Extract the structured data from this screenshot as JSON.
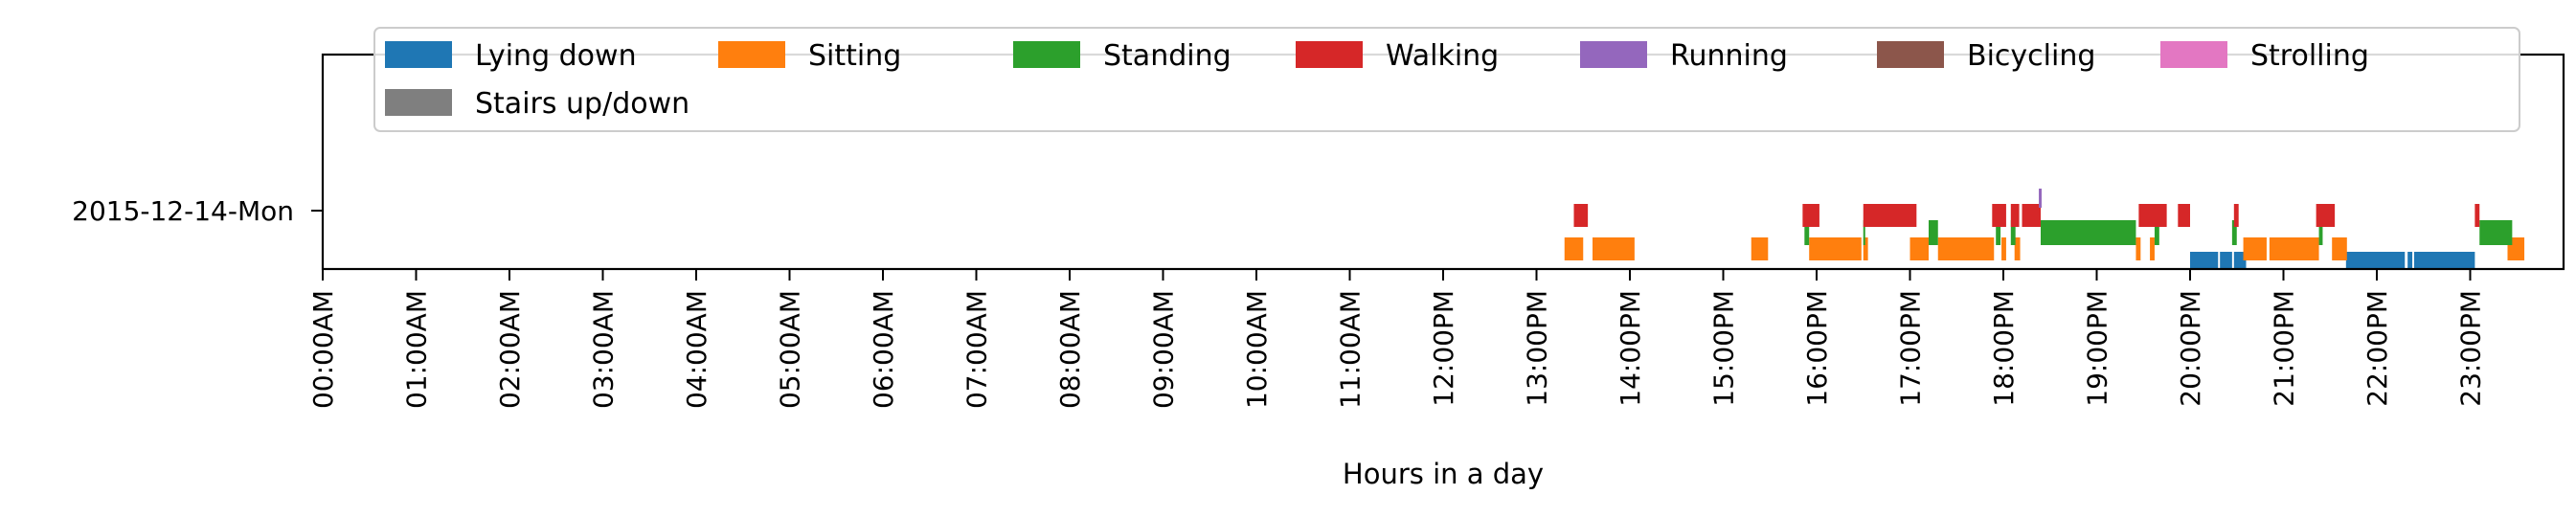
{
  "chart_data": {
    "type": "timeline",
    "title": "",
    "xlabel": "Hours in a day",
    "ylabel": "",
    "y_category": "2015-12-14-Mon",
    "x_unit": "hours",
    "xlim": [
      0,
      24
    ],
    "x_ticks": [
      {
        "value": 0,
        "label": "00:00AM"
      },
      {
        "value": 1,
        "label": "01:00AM"
      },
      {
        "value": 2,
        "label": "02:00AM"
      },
      {
        "value": 3,
        "label": "03:00AM"
      },
      {
        "value": 4,
        "label": "04:00AM"
      },
      {
        "value": 5,
        "label": "05:00AM"
      },
      {
        "value": 6,
        "label": "06:00AM"
      },
      {
        "value": 7,
        "label": "07:00AM"
      },
      {
        "value": 8,
        "label": "08:00AM"
      },
      {
        "value": 9,
        "label": "09:00AM"
      },
      {
        "value": 10,
        "label": "10:00AM"
      },
      {
        "value": 11,
        "label": "11:00AM"
      },
      {
        "value": 12,
        "label": "12:00PM"
      },
      {
        "value": 13,
        "label": "13:00PM"
      },
      {
        "value": 14,
        "label": "14:00PM"
      },
      {
        "value": 15,
        "label": "15:00PM"
      },
      {
        "value": 16,
        "label": "16:00PM"
      },
      {
        "value": 17,
        "label": "17:00PM"
      },
      {
        "value": 18,
        "label": "18:00PM"
      },
      {
        "value": 19,
        "label": "19:00PM"
      },
      {
        "value": 20,
        "label": "20:00PM"
      },
      {
        "value": 21,
        "label": "21:00PM"
      },
      {
        "value": 22,
        "label": "22:00PM"
      },
      {
        "value": 23,
        "label": "23:00PM"
      }
    ],
    "legend_position": "top",
    "series": [
      {
        "name": "Lying down",
        "color": "#1f77b4",
        "intervals": [
          [
            20.0,
            20.3
          ],
          [
            20.32,
            20.45
          ],
          [
            20.47,
            20.6
          ],
          [
            21.67,
            22.3
          ],
          [
            22.33,
            22.38
          ],
          [
            22.4,
            23.05
          ]
        ]
      },
      {
        "name": "Sitting",
        "color": "#ff7f0e",
        "intervals": [
          [
            13.3,
            13.5
          ],
          [
            13.6,
            14.05
          ],
          [
            15.3,
            15.48
          ],
          [
            15.92,
            16.48
          ],
          [
            16.5,
            16.55
          ],
          [
            17.0,
            17.2
          ],
          [
            17.3,
            17.9
          ],
          [
            17.98,
            18.03
          ],
          [
            18.12,
            18.18
          ],
          [
            19.42,
            19.47
          ],
          [
            19.57,
            19.62
          ],
          [
            20.57,
            20.82
          ],
          [
            20.85,
            21.38
          ],
          [
            21.52,
            21.68
          ],
          [
            23.4,
            23.58
          ]
        ]
      },
      {
        "name": "Standing",
        "color": "#2ca02c",
        "intervals": [
          [
            15.87,
            15.92
          ],
          [
            16.5,
            16.52
          ],
          [
            17.2,
            17.3
          ],
          [
            17.92,
            17.97
          ],
          [
            18.08,
            18.13
          ],
          [
            18.4,
            19.42
          ],
          [
            19.62,
            19.67
          ],
          [
            20.45,
            20.5
          ],
          [
            21.38,
            21.42
          ],
          [
            23.1,
            23.45
          ]
        ]
      },
      {
        "name": "Walking",
        "color": "#d62728",
        "intervals": [
          [
            13.4,
            13.55
          ],
          [
            15.85,
            16.03
          ],
          [
            16.5,
            17.07
          ],
          [
            17.88,
            18.03
          ],
          [
            18.08,
            18.17
          ],
          [
            18.2,
            18.4
          ],
          [
            19.45,
            19.75
          ],
          [
            19.87,
            20.0
          ],
          [
            20.47,
            20.52
          ],
          [
            21.35,
            21.55
          ],
          [
            23.05,
            23.1
          ]
        ]
      },
      {
        "name": "Running",
        "color": "#9467bd",
        "intervals": [
          [
            18.38,
            18.41
          ]
        ]
      },
      {
        "name": "Bicycling",
        "color": "#8c564b",
        "intervals": []
      },
      {
        "name": "Strolling",
        "color": "#e377c2",
        "intervals": []
      },
      {
        "name": "Stairs up/down",
        "color": "#7f7f7f",
        "intervals": []
      }
    ]
  }
}
